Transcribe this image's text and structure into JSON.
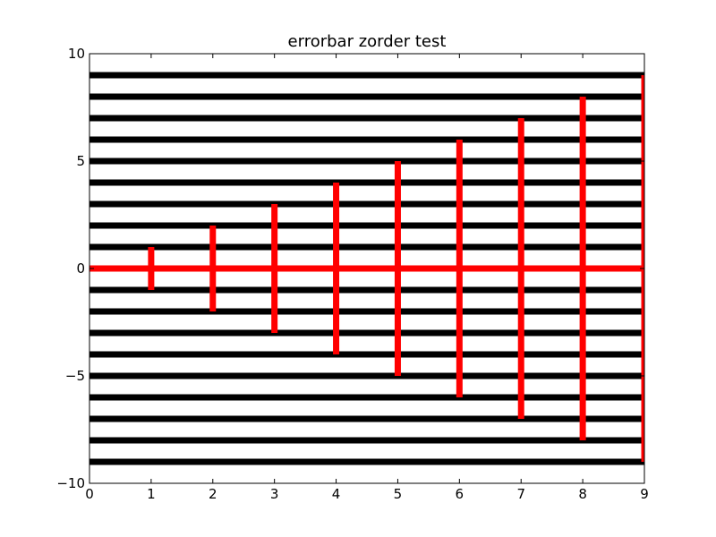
{
  "chart_data": {
    "type": "line",
    "title": "errorbar zorder test",
    "xlabel": "",
    "ylabel": "",
    "xlim": [
      0,
      9
    ],
    "ylim": [
      -10,
      10
    ],
    "x_ticks": [
      0,
      1,
      2,
      3,
      4,
      5,
      6,
      7,
      8,
      9
    ],
    "y_ticks": [
      -10,
      -5,
      0,
      5,
      10
    ],
    "x_tick_labels": [
      "0",
      "1",
      "2",
      "3",
      "4",
      "5",
      "6",
      "7",
      "8",
      "9"
    ],
    "y_tick_labels": [
      "−10",
      "−5",
      "0",
      "5",
      "10"
    ],
    "grid": false,
    "legend": "none",
    "horizontal_lines": {
      "color": "#000000",
      "y": [
        -9,
        -8,
        -7,
        -6,
        -5,
        -4,
        -3,
        -2,
        -1,
        1,
        2,
        3,
        4,
        5,
        6,
        7,
        8,
        9
      ],
      "x_range": [
        0,
        9
      ]
    },
    "errorbar_series": {
      "color": "#ff0000",
      "x": [
        0,
        1,
        2,
        3,
        4,
        5,
        6,
        7,
        8,
        9
      ],
      "y": [
        0,
        0,
        0,
        0,
        0,
        0,
        0,
        0,
        0,
        0
      ],
      "yerr": [
        0,
        1,
        2,
        3,
        4,
        5,
        6,
        7,
        8,
        9
      ]
    }
  }
}
